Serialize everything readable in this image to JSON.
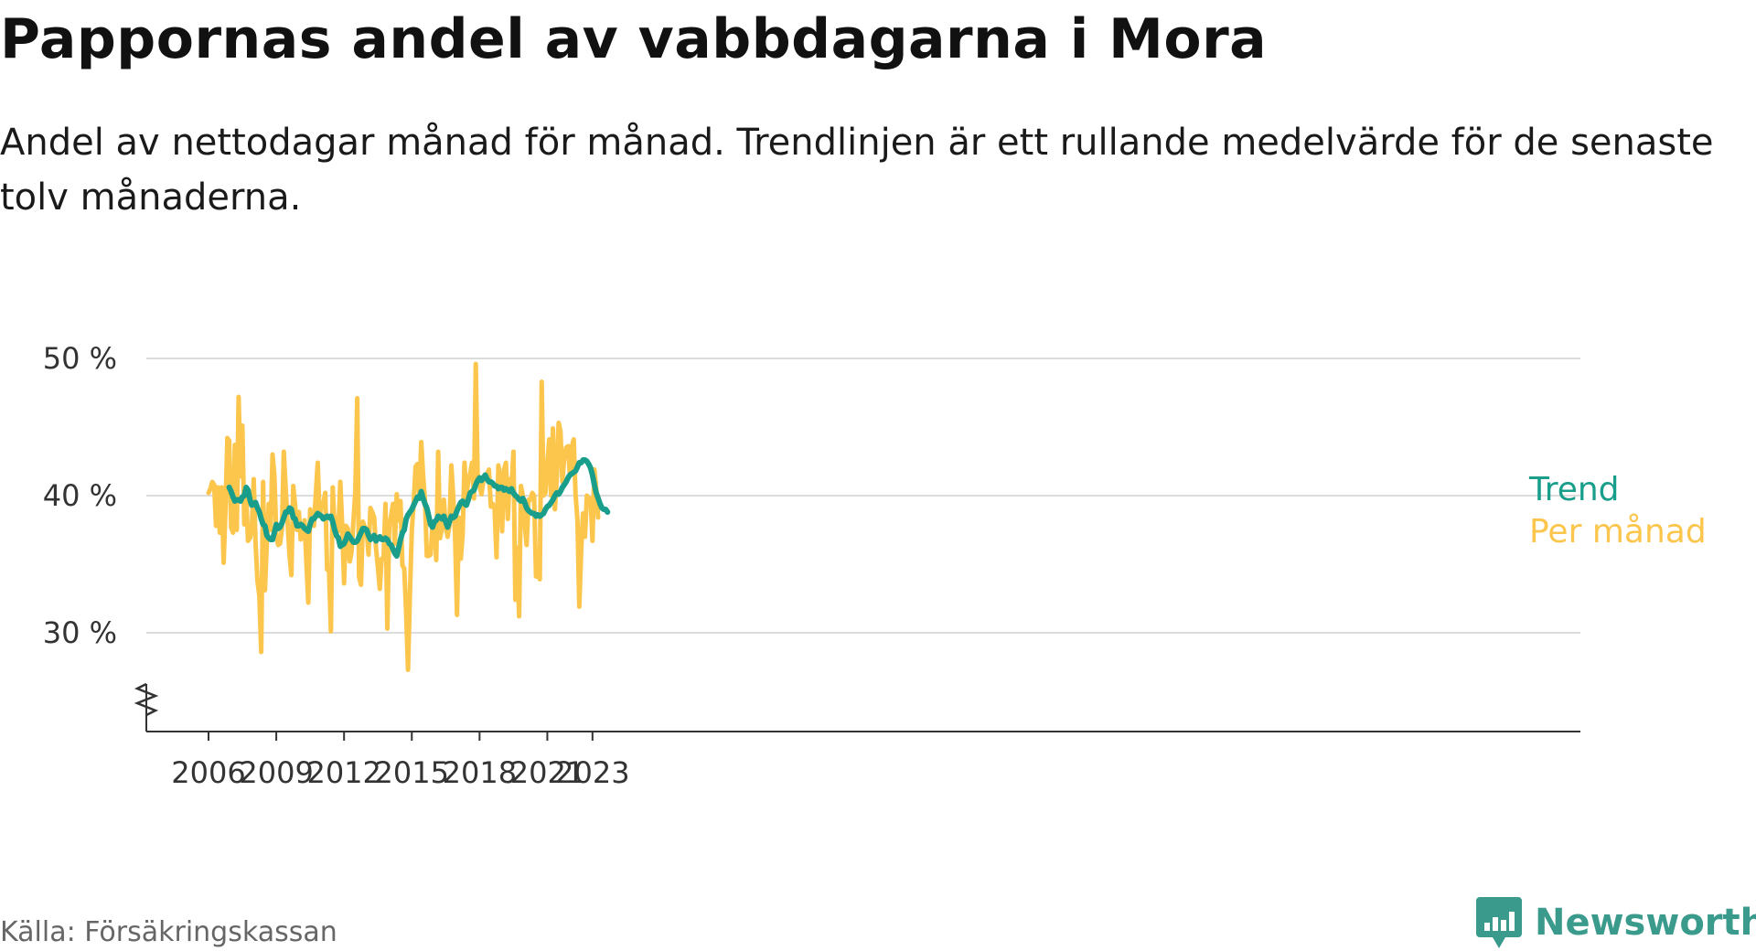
{
  "title": "Pappornas andel av vabbdagarna i Mora",
  "subtitle": "Andel av nettodagar månad för månad. Trendlinjen är ett rullande medelvärde för de senaste tolv månaderna.",
  "source": "Källa: Försäkringskassan",
  "brand": {
    "name": "Newsworthy",
    "icon": "newsworthy-logo-icon"
  },
  "chart_data": {
    "type": "line",
    "title": "Pappornas andel av vabbdagarna i Mora",
    "subtitle": "Andel av nettodagar månad för månad. Trendlinjen är ett rullande medelvärde för de senaste tolv månaderna.",
    "xlabel": "",
    "ylabel": "",
    "x_ticks": [
      "2006",
      "2009",
      "2012",
      "2015",
      "2018",
      "2021",
      "2023"
    ],
    "y_ticks": [
      "30 %",
      "40 %",
      "50 %"
    ],
    "ylim": [
      23,
      50
    ],
    "y_axis_broken": true,
    "grid": "horizontal",
    "legend": "direct labels at right end of lines",
    "series": [
      {
        "name": "Per månad",
        "color": "#fcc54c",
        "start": "2006-01",
        "values": [
          40.2,
          40.5,
          41,
          40.8,
          37.8,
          40.6,
          37.3,
          40.6,
          35.1,
          38.9,
          44.2,
          44,
          37.7,
          37.3,
          43.7,
          37.5,
          47.2,
          41.4,
          45.1,
          37.9,
          40,
          36.7,
          36.9,
          37.5,
          41.2,
          36.6,
          33.8,
          32.7,
          28.6,
          41,
          33.1,
          36.6,
          39.4,
          37.5,
          43,
          41.5,
          37.2,
          36.4,
          36.5,
          37.6,
          43.2,
          40.5,
          38.1,
          35.7,
          34.2,
          40.7,
          39.3,
          37.5,
          38.8,
          36.8,
          37,
          38.2,
          35.1,
          32.2,
          39,
          37.9,
          37.8,
          40.1,
          42.4,
          38.5,
          39.2,
          39.4,
          40.2,
          34.6,
          34.7,
          30.1,
          40.6,
          37.5,
          38.4,
          37.4,
          41,
          37.9,
          33.6,
          37.8,
          37.6,
          35.2,
          35.9,
          38.2,
          40.3,
          47.1,
          34.1,
          33.5,
          38.1,
          37.7,
          37.5,
          35.7,
          39.1,
          38.8,
          38.4,
          36.1,
          34.8,
          33.2,
          35.4,
          35.4,
          39.4,
          30.3,
          37.9,
          38.5,
          39.4,
          36.5,
          40.1,
          38.2,
          39.6,
          34.9,
          34.7,
          31.5,
          27.3,
          32.8,
          37.5,
          39.4,
          42.1,
          42.3,
          40.1,
          43.9,
          41.5,
          39.6,
          35.6,
          35.6,
          35.7,
          37.9,
          37.9,
          35.3,
          43.2,
          36.9,
          37.6,
          39.7,
          37.8,
          37,
          37.8,
          42.2,
          40,
          37.1,
          31.3,
          38.4,
          35.4,
          37.1,
          42.4,
          39.9,
          41.1,
          41.6,
          42.4,
          39.8,
          49.6,
          41.3,
          40.7,
          40.1,
          41.1,
          41.2,
          41.6,
          41.9,
          39.2,
          39.4,
          39,
          35.5,
          42.2,
          41.3,
          37.4,
          41.9,
          42.4,
          38.3,
          41.2,
          40.6,
          43.2,
          32.4,
          36.2,
          31.2,
          40.7,
          40,
          37.9,
          36.4,
          39.7,
          39.7,
          40.2,
          40,
          34.1,
          35.4,
          33.9,
          48.3,
          40,
          40.2,
          42.2,
          44.1,
          40,
          44.9,
          39,
          41.2,
          45.3,
          44.7,
          41,
          42.8,
          43.5,
          43.6,
          41.5,
          43.6,
          44.1,
          40.1,
          38.2,
          31.9,
          36.1,
          38.7,
          37,
          40,
          39.4,
          39.8,
          36.7,
          41.9,
          40.5,
          38.4
        ]
      },
      {
        "name": "Trend",
        "color": "#1a9e8c",
        "start": "2006-12",
        "values": [
          40.6,
          40.3,
          39.9,
          39.6,
          39.7,
          39.7,
          39.6,
          39.9,
          40,
          40.6,
          40.4,
          39.7,
          39.3,
          39.4,
          39.5,
          39.1,
          38.8,
          38.3,
          37.9,
          37.8,
          37.1,
          36.9,
          36.8,
          36.8,
          37.3,
          37.9,
          37.6,
          37.7,
          38,
          38.4,
          38.8,
          38.8,
          39.1,
          39,
          38.4,
          38.3,
          37.8,
          37.8,
          37.9,
          37.8,
          37.6,
          37.5,
          37.4,
          37.9,
          38.3,
          38.3,
          38.5,
          38.7,
          38.6,
          38.5,
          38.3,
          38.4,
          38.5,
          38.4,
          38.5,
          38.1,
          37.5,
          37.1,
          36.9,
          36.3,
          36.4,
          36.5,
          36.8,
          37.2,
          37,
          36.8,
          36.6,
          36.6,
          36.7,
          37,
          37.3,
          37.6,
          37.6,
          37.5,
          37.1,
          36.8,
          36.9,
          37.1,
          36.7,
          36.9,
          37,
          36.8,
          36.8,
          36.9,
          36.8,
          36.5,
          36.4,
          36.1,
          35.8,
          35.6,
          36.2,
          36.8,
          37.3,
          37.5,
          38.3,
          38.6,
          38.8,
          39,
          39.3,
          39.6,
          39.9,
          39.8,
          40.3,
          39.8,
          39.4,
          39.1,
          38.5,
          37.9,
          37.7,
          38.1,
          38.2,
          38.5,
          38.4,
          38.3,
          38.5,
          38.1,
          37.7,
          38.1,
          38.5,
          38.4,
          38.5,
          38.9,
          39.2,
          39.5,
          39.6,
          39.4,
          39.3,
          39.7,
          40.2,
          40.3,
          40.4,
          40.8,
          41.1,
          41.3,
          41.1,
          41.3,
          41.5,
          41.2,
          41,
          41,
          40.9,
          40.7,
          40.7,
          40.5,
          40.6,
          40.6,
          40.4,
          40.5,
          40.4,
          40.3,
          40.5,
          40.2,
          40,
          39.9,
          39.7,
          39.6,
          39.8,
          39.5,
          39.1,
          38.9,
          38.8,
          38.7,
          38.7,
          38.5,
          38.6,
          38.5,
          38.6,
          38.7,
          39,
          39.2,
          39.3,
          39.5,
          39.7,
          40,
          40.2,
          40.1,
          40.3,
          40.6,
          40.8,
          41,
          41.3,
          41.5,
          41.6,
          41.7,
          41.8,
          42.1,
          42.4,
          42.4,
          42.6,
          42.6,
          42.5,
          42.3,
          42,
          41.5,
          40.8,
          40.2,
          39.8,
          39.4,
          39.1,
          39,
          39,
          38.8
        ]
      }
    ]
  }
}
